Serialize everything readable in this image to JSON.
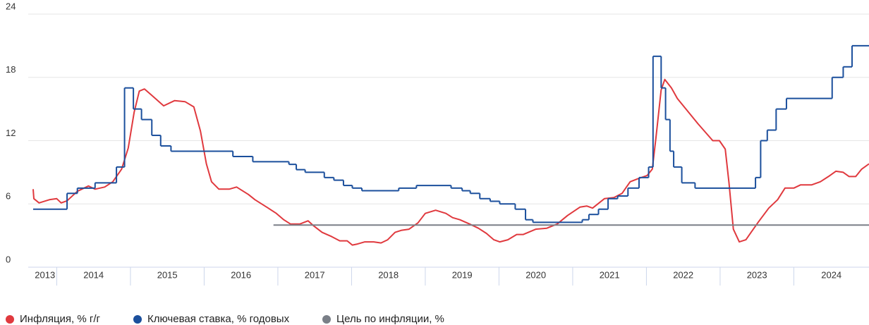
{
  "chart_data": {
    "type": "line",
    "xlim": [
      2013.68,
      2025.02
    ],
    "xticks": [
      2013,
      2014,
      2015,
      2016,
      2017,
      2018,
      2019,
      2020,
      2021,
      2022,
      2023,
      2024
    ],
    "ylim": [
      0,
      24
    ],
    "yticks": [
      0,
      6,
      12,
      18,
      24
    ],
    "grid": true,
    "legend": "bottom",
    "series": [
      {
        "name": "Инфляция, % г/г",
        "color": "#e0393e",
        "x": [
          2013.68,
          2013.69,
          2013.76,
          2013.9,
          2014.0,
          2014.06,
          2014.14,
          2014.28,
          2014.43,
          2014.52,
          2014.65,
          2014.76,
          2014.88,
          2014.97,
          2015.05,
          2015.12,
          2015.19,
          2015.29,
          2015.45,
          2015.6,
          2015.74,
          2015.86,
          2015.95,
          2016.03,
          2016.1,
          2016.2,
          2016.34,
          2016.44,
          2016.6,
          2016.69,
          2016.87,
          2016.98,
          2017.08,
          2017.17,
          2017.3,
          2017.41,
          2017.49,
          2017.6,
          2017.73,
          2017.84,
          2017.94,
          2018.01,
          2018.08,
          2018.18,
          2018.3,
          2018.4,
          2018.49,
          2018.59,
          2018.68,
          2018.78,
          2018.9,
          2019.0,
          2019.14,
          2019.28,
          2019.37,
          2019.47,
          2019.6,
          2019.72,
          2019.83,
          2019.93,
          2020.01,
          2020.12,
          2020.24,
          2020.33,
          2020.5,
          2020.65,
          2020.79,
          2020.93,
          2021.1,
          2021.19,
          2021.27,
          2021.43,
          2021.56,
          2021.67,
          2021.78,
          2021.89,
          2022.01,
          2022.08,
          2022.13,
          2022.2,
          2022.25,
          2022.34,
          2022.42,
          2022.56,
          2022.7,
          2022.8,
          2022.9,
          2022.99,
          2023.07,
          2023.12,
          2023.18,
          2023.26,
          2023.35,
          2023.42,
          2023.52,
          2023.66,
          2023.78,
          2023.88,
          2024.0,
          2024.09,
          2024.24,
          2024.36,
          2024.47,
          2024.57,
          2024.67,
          2024.75,
          2024.84,
          2024.92,
          2025.02
        ],
        "values": [
          7.4,
          6.5,
          6.1,
          6.4,
          6.5,
          6.1,
          6.3,
          7.2,
          7.7,
          7.4,
          7.6,
          8.1,
          9.3,
          11.3,
          14.7,
          16.7,
          16.9,
          16.3,
          15.3,
          15.8,
          15.7,
          15.2,
          12.9,
          9.8,
          8.1,
          7.4,
          7.4,
          7.6,
          6.9,
          6.4,
          5.6,
          5.1,
          4.5,
          4.1,
          4.1,
          4.4,
          3.9,
          3.3,
          2.9,
          2.5,
          2.5,
          2.1,
          2.2,
          2.4,
          2.4,
          2.3,
          2.6,
          3.3,
          3.5,
          3.6,
          4.2,
          5.1,
          5.4,
          5.1,
          4.7,
          4.5,
          4.1,
          3.7,
          3.2,
          2.6,
          2.4,
          2.6,
          3.1,
          3.1,
          3.6,
          3.7,
          4.1,
          4.9,
          5.7,
          5.8,
          5.6,
          6.5,
          6.6,
          7.0,
          8.1,
          8.4,
          8.7,
          9.3,
          12.3,
          16.8,
          17.8,
          17.0,
          16.0,
          14.8,
          13.6,
          12.8,
          12.0,
          12.0,
          11.2,
          8.0,
          3.6,
          2.4,
          2.6,
          3.3,
          4.3,
          5.6,
          6.4,
          7.5,
          7.5,
          7.8,
          7.8,
          8.1,
          8.6,
          9.1,
          9.0,
          8.6,
          8.6,
          9.3,
          9.8
        ]
      },
      {
        "name": "Ключевая ставка, % годовых",
        "color": "#1b4f9c",
        "step": true,
        "x": [
          2013.68,
          2014.14,
          2014.28,
          2014.52,
          2014.81,
          2014.92,
          2015.04,
          2015.15,
          2015.29,
          2015.41,
          2015.55,
          2016.39,
          2016.66,
          2017.15,
          2017.25,
          2017.37,
          2017.63,
          2017.76,
          2017.89,
          2018.01,
          2018.14,
          2018.64,
          2018.88,
          2019.35,
          2019.5,
          2019.61,
          2019.74,
          2019.88,
          2020.01,
          2020.22,
          2020.36,
          2020.46,
          2021.13,
          2021.22,
          2021.35,
          2021.48,
          2021.61,
          2021.75,
          2021.9,
          2022.03,
          2022.09,
          2022.2,
          2022.26,
          2022.32,
          2022.37,
          2022.48,
          2022.66,
          2023.48,
          2023.55,
          2023.64,
          2023.76,
          2023.9,
          2024.52,
          2024.67,
          2024.79,
          2025.02
        ],
        "values": [
          5.5,
          7,
          7.5,
          8,
          9.5,
          17,
          15,
          14,
          12.5,
          11.5,
          11,
          10.5,
          10,
          9.75,
          9.25,
          9,
          8.5,
          8.25,
          7.75,
          7.5,
          7.25,
          7.5,
          7.75,
          7.5,
          7.25,
          7,
          6.5,
          6.25,
          6,
          5.5,
          4.5,
          4.25,
          4.5,
          5,
          5.5,
          6.5,
          6.75,
          7.5,
          8.5,
          9.5,
          20,
          17,
          14,
          11,
          9.5,
          8,
          7.5,
          8.5,
          12,
          13,
          15,
          16,
          18,
          19,
          21,
          21
        ]
      },
      {
        "name": "Цель по инфляции, %",
        "color": "#7a7f87",
        "x": [
          2016.94,
          2025.02
        ],
        "values": [
          4,
          4
        ]
      }
    ]
  }
}
